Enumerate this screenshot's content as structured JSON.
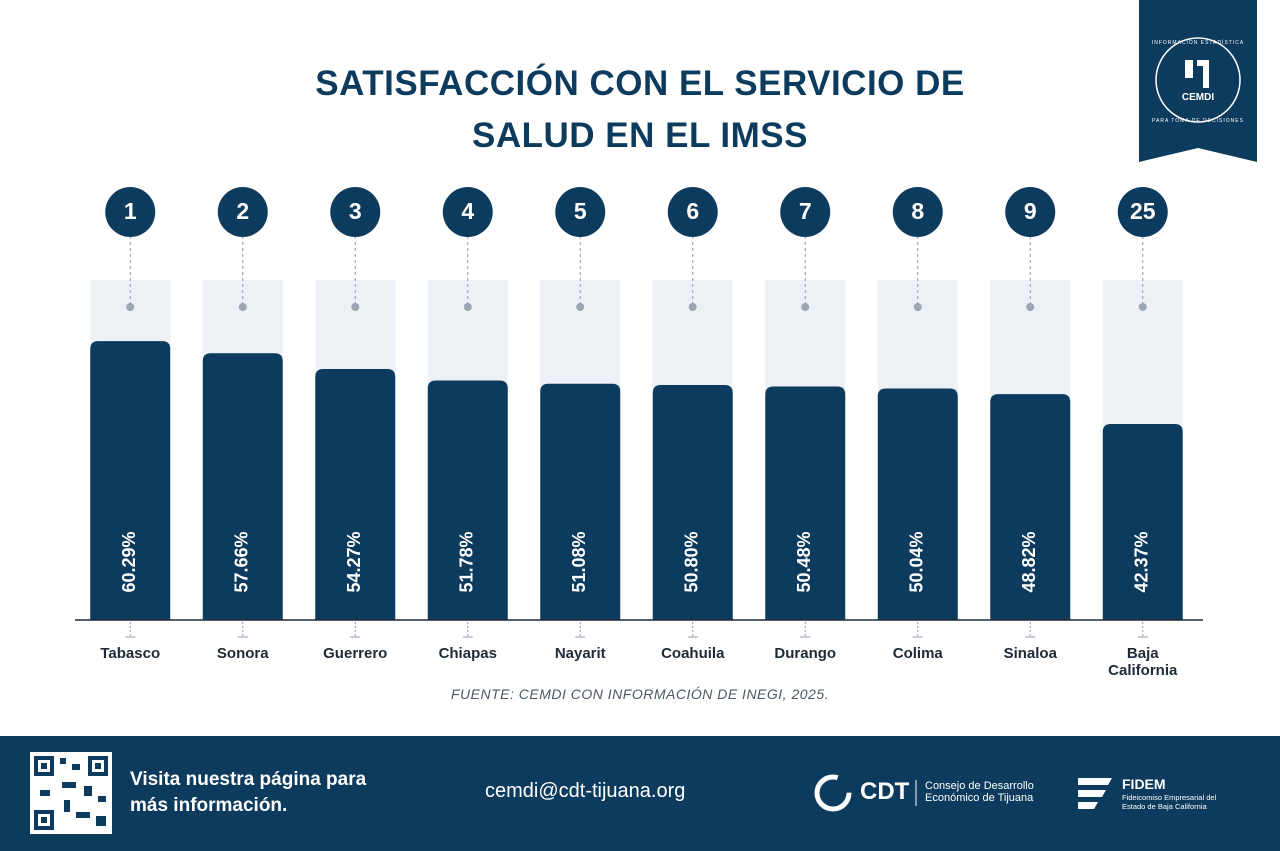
{
  "chart_data": {
    "type": "bar",
    "title": "SATISFACCIÓN CON EL SERVICIO DE SALUD EN EL IMSS",
    "categories": [
      "Tabasco",
      "Sonora",
      "Guerrero",
      "Chiapas",
      "Nayarit",
      "Coahuila",
      "Durango",
      "Colima",
      "Sinaloa",
      "Baja California"
    ],
    "ranks": [
      1,
      2,
      3,
      4,
      5,
      6,
      7,
      8,
      9,
      25
    ],
    "values": [
      60.29,
      57.66,
      54.27,
      51.78,
      51.08,
      50.8,
      50.48,
      50.04,
      48.82,
      42.37
    ],
    "value_labels": [
      "60.29%",
      "57.66%",
      "54.27%",
      "51.78%",
      "51.08%",
      "50.80%",
      "50.48%",
      "50.04%",
      "48.82%",
      "42.37%"
    ],
    "color": "#0d3b5e",
    "ylim": [
      0,
      73.5
    ],
    "source": "FUENTE: CEMDI CON INFORMACIÓN DE INEGI, 2025."
  },
  "header_logo": {
    "name": "CEMDI",
    "top_text": "INFORMACIÓN ESTADÍSTICA",
    "bottom_text": "PARA TOMA DE DECISIONES"
  },
  "footer": {
    "visit": "Visita nuestra página para más información.",
    "email": "cemdi@cdt-tijuana.org",
    "cdt": "CDT",
    "cdt_name": "Consejo de Desarrollo Económico de Tijuana",
    "fidem": "FIDEM",
    "fidem_name": "Fideicomiso Empresarial del Estado de Baja California"
  }
}
